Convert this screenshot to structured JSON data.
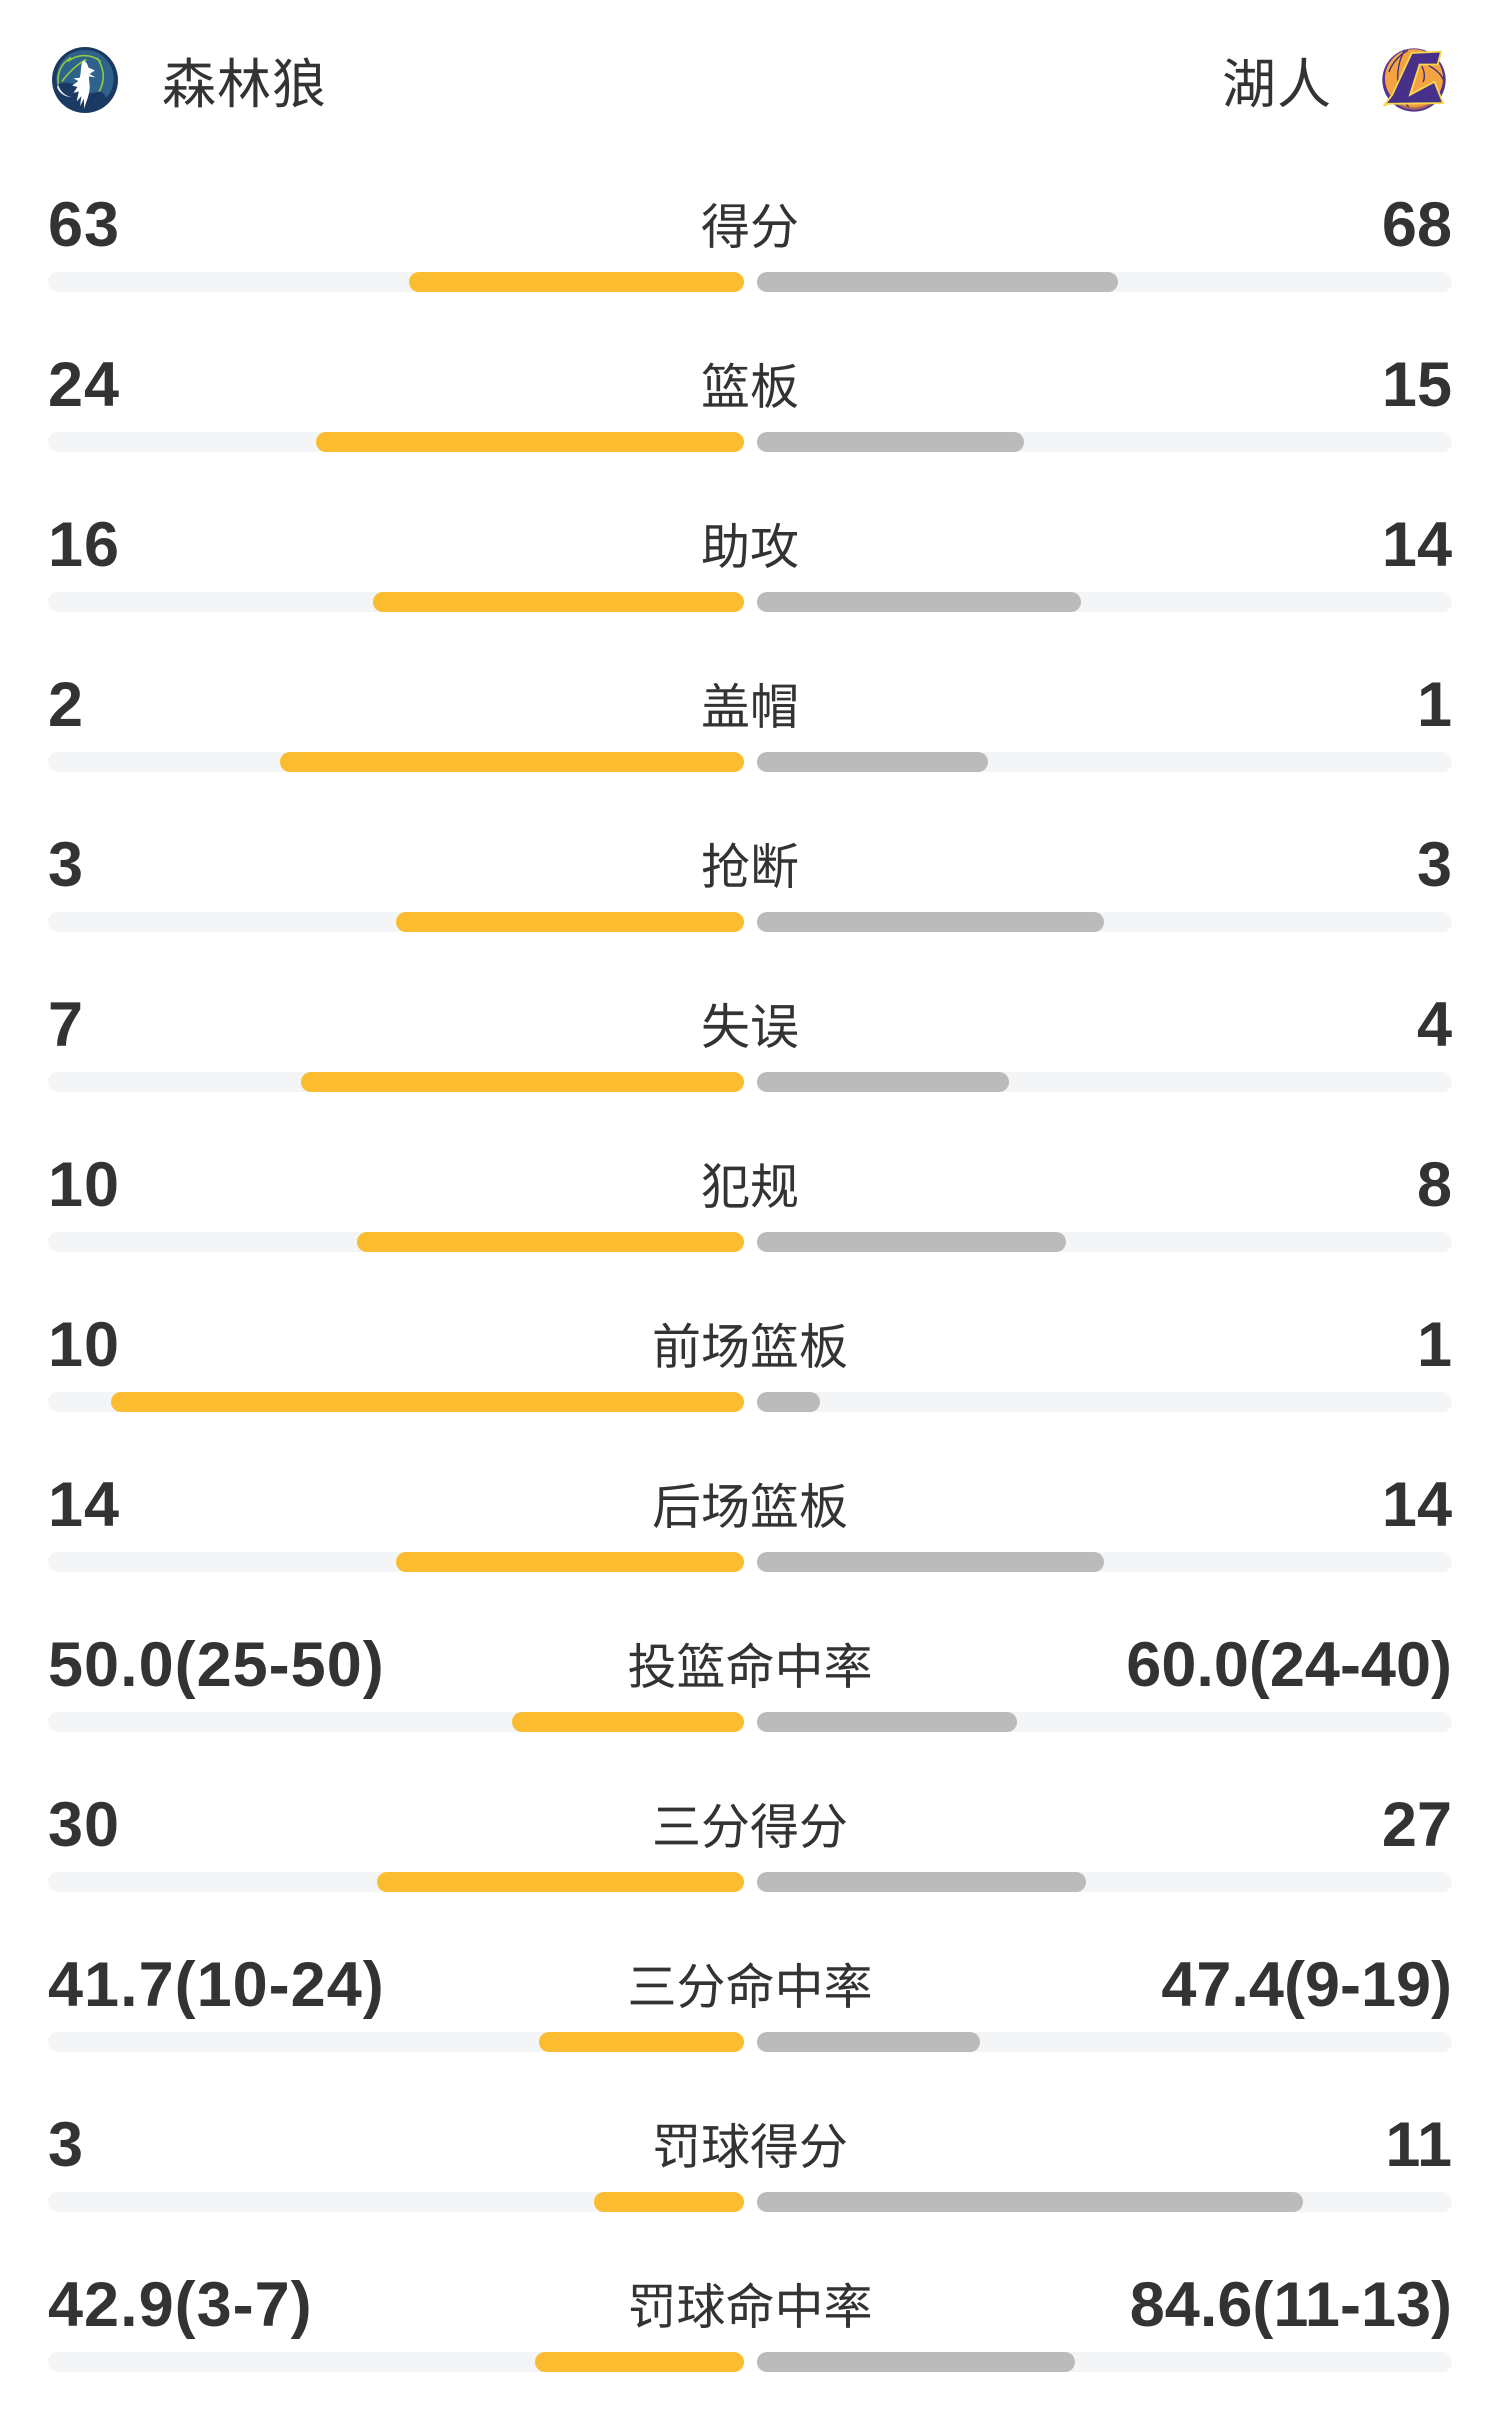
{
  "meta": {
    "page_type": "basketball-game-team-stats-comparison"
  },
  "colors": {
    "home_bar": "#FBBC30",
    "away_bar": "#BBBBBB",
    "bar_track": "#F4F5F7",
    "text_primary": "#333333",
    "background": "#FFFFFF"
  },
  "header": {
    "home_team": {
      "name": "森林狼",
      "logo_icon": "timberwolves-logo"
    },
    "away_team": {
      "name": "湖人",
      "logo_icon": "lakers-logo"
    }
  },
  "chart_data": {
    "type": "bar",
    "variant": "paired-horizontal-comparison",
    "legend_position": "top",
    "grid": false,
    "categories": [
      "得分",
      "篮板",
      "助攻",
      "盖帽",
      "抢断",
      "失误",
      "犯规",
      "前场篮板",
      "后场篮板",
      "投篮命中率",
      "三分得分",
      "三分命中率",
      "罚球得分",
      "罚球命中率"
    ],
    "series": [
      {
        "name": "森林狼",
        "side": "left",
        "color": "#FBBC30",
        "values": [
          63,
          24,
          16,
          2,
          3,
          7,
          10,
          10,
          14,
          50.0,
          30,
          41.7,
          3,
          42.9
        ],
        "display": [
          "63",
          "24",
          "16",
          "2",
          "3",
          "7",
          "10",
          "10",
          "14",
          "50.0(25-50)",
          "30",
          "41.7(10-24)",
          "3",
          "42.9(3-7)"
        ]
      },
      {
        "name": "湖人",
        "side": "right",
        "color": "#BBBBBB",
        "values": [
          68,
          15,
          14,
          1,
          3,
          4,
          8,
          1,
          14,
          60.0,
          27,
          47.4,
          11,
          84.6
        ],
        "display": [
          "68",
          "15",
          "14",
          "1",
          "3",
          "4",
          "8",
          "1",
          "14",
          "60.0(24-40)",
          "27",
          "47.4(9-19)",
          "11",
          "84.6(11-13)"
        ]
      }
    ],
    "row_kinds": [
      "count",
      "count",
      "count",
      "count",
      "count",
      "count",
      "count",
      "count",
      "count",
      "percent",
      "count",
      "percent",
      "count",
      "percent"
    ],
    "bar_length_rule": {
      "count": "value / (left_value + right_value)",
      "percent": "value / (value + 100)"
    }
  }
}
